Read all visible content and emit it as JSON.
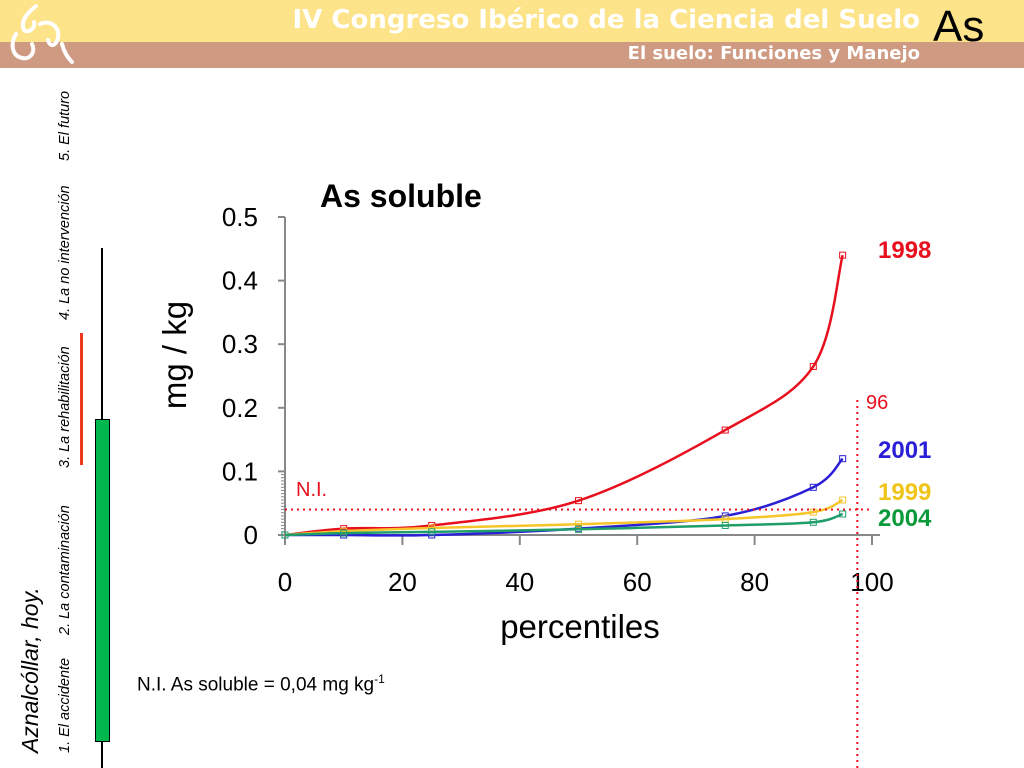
{
  "header": {
    "title": "IV Congreso Ibérico de la Ciencia del Suelo",
    "subtitle": "El suelo: Funciones y Manejo",
    "slide_tag": "As"
  },
  "sidebar": {
    "title": "Aznalcóllar, hoy.",
    "items": [
      {
        "label": "1. El accidente"
      },
      {
        "label": "2. La contaminación"
      },
      {
        "label": "3. La rehabilitación"
      },
      {
        "label": "4. La no intervención"
      },
      {
        "label": "5. El futuro"
      }
    ]
  },
  "footnote": {
    "text": "N.I. As soluble = 0,04 mg kg",
    "sup": "-1"
  },
  "chart_data": {
    "type": "line",
    "title": "As soluble",
    "xlabel": "percentiles",
    "ylabel": "mg / kg",
    "xlim": [
      0,
      100
    ],
    "ylim": [
      0,
      0.5
    ],
    "xticks": [
      "0",
      "20",
      "40",
      "60",
      "80",
      "100"
    ],
    "yticks": [
      "0",
      "0.1",
      "0.2",
      "0.3",
      "0.4",
      "0.5"
    ],
    "x": [
      0,
      10,
      25,
      50,
      75,
      90,
      95
    ],
    "series": [
      {
        "name": "1998",
        "color": "#e8101e",
        "values": [
          0,
          0.01,
          0.015,
          0.054,
          0.165,
          0.265,
          0.44
        ]
      },
      {
        "name": "2001",
        "color": "#2a1fd6",
        "values": [
          0,
          0,
          0,
          0.01,
          0.03,
          0.075,
          0.12
        ]
      },
      {
        "name": "1999",
        "color": "#f5c52a",
        "values": [
          0,
          0.006,
          0.011,
          0.017,
          0.025,
          0.036,
          0.055
        ]
      },
      {
        "name": "2004",
        "color": "#1f9e6a",
        "values": [
          0,
          0.003,
          0.005,
          0.009,
          0.015,
          0.02,
          0.033
        ]
      }
    ],
    "label_colors": {
      "1998": "#e8101e",
      "2001": "#2a1fd6",
      "1999": "#f0c419",
      "2004": "#0a9a3a"
    },
    "annotations": {
      "threshold_label": "N.I.",
      "threshold_value": 0.04,
      "percentile_label": "96",
      "percentile_value": 97.5
    }
  }
}
